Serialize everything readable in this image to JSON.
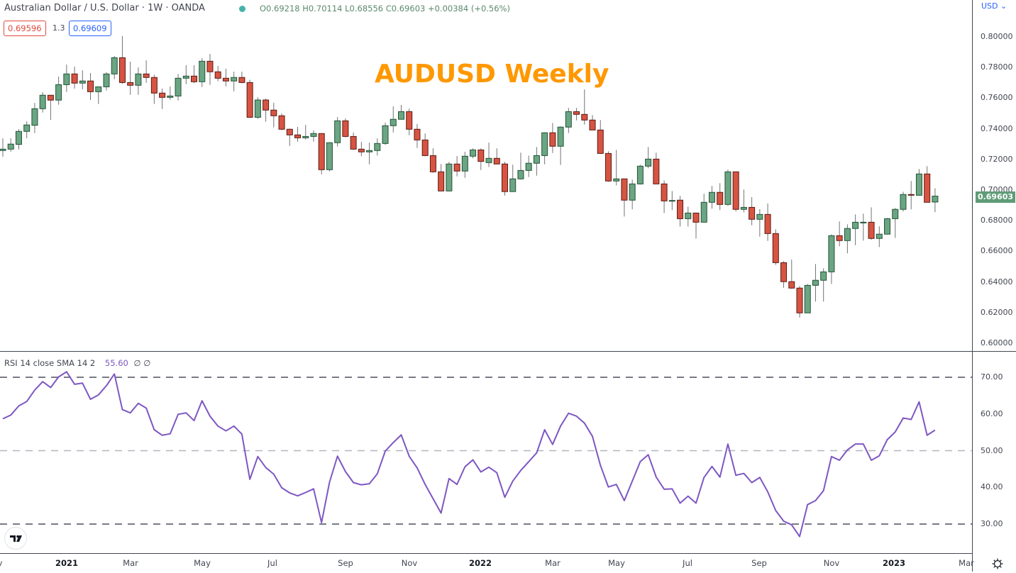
{
  "header": {
    "symbol_title": "Australian Dollar / U.S. Dollar · 1W · OANDA",
    "ohlc": "O0.69218 H0.70114 L0.68556 C0.69603 +0.00384 (+0.56%)",
    "bid": "0.69596",
    "spread": "1.3",
    "ask": "0.69609",
    "status_color": "#26a69a"
  },
  "annotation": {
    "text": "AUDUSD Weekly",
    "color": "#ff9800"
  },
  "price_axis": {
    "currency": "USD ⌄",
    "ticks": [
      "0.80000",
      "0.78000",
      "0.76000",
      "0.74000",
      "0.72000",
      "0.70000",
      "0.68000",
      "0.66000",
      "0.64000",
      "0.62000",
      "0.60000"
    ],
    "last_price": "0.69603"
  },
  "rsi_pane": {
    "legend": "RSI 14 close SMA 14 2",
    "value": "55.60",
    "extra": "∅ ∅",
    "ticks": [
      "70.00",
      "60.00",
      "50.00",
      "40.00",
      "30.00"
    ]
  },
  "time_axis": {
    "ticks": [
      {
        "label": "v",
        "year": false
      },
      {
        "label": "2021",
        "year": true
      },
      {
        "label": "Mar",
        "year": false
      },
      {
        "label": "May",
        "year": false
      },
      {
        "label": "Jul",
        "year": false
      },
      {
        "label": "Sep",
        "year": false
      },
      {
        "label": "Nov",
        "year": false
      },
      {
        "label": "2022",
        "year": true
      },
      {
        "label": "Mar",
        "year": false
      },
      {
        "label": "May",
        "year": false
      },
      {
        "label": "Jul",
        "year": false
      },
      {
        "label": "Sep",
        "year": false
      },
      {
        "label": "Nov",
        "year": false
      },
      {
        "label": "2023",
        "year": true
      },
      {
        "label": "Mar",
        "year": false
      }
    ]
  },
  "colors": {
    "up": "#6ba583",
    "up_border": "#225437",
    "down": "#d75442",
    "down_border": "#5b1a13",
    "wick": "#737375",
    "rsi": "#7e57c2"
  },
  "chart_data": [
    {
      "type": "candlestick",
      "title": "AUDUSD Weekly",
      "ylim": [
        0.6,
        0.8
      ],
      "x_tick_labels": [
        "2021",
        "Mar",
        "May",
        "Jul",
        "Sep",
        "Nov",
        "2022",
        "Mar",
        "May",
        "Jul",
        "Sep",
        "Nov",
        "2023",
        "Mar"
      ],
      "ohlc": [
        [
          0.7258,
          0.7338,
          0.7218,
          0.7267
        ],
        [
          0.7267,
          0.7338,
          0.7251,
          0.73
        ],
        [
          0.7298,
          0.7398,
          0.7265,
          0.7383
        ],
        [
          0.7383,
          0.7449,
          0.7338,
          0.7425
        ],
        [
          0.7423,
          0.7569,
          0.7372,
          0.7531
        ],
        [
          0.7531,
          0.7639,
          0.7506,
          0.7619
        ],
        [
          0.7619,
          0.7619,
          0.7458,
          0.7587
        ],
        [
          0.7587,
          0.7741,
          0.7557,
          0.7688
        ],
        [
          0.7688,
          0.7819,
          0.764,
          0.7758
        ],
        [
          0.7758,
          0.7806,
          0.7662,
          0.7698
        ],
        [
          0.7698,
          0.7782,
          0.7657,
          0.7712
        ],
        [
          0.7712,
          0.7764,
          0.7588,
          0.7642
        ],
        [
          0.7642,
          0.7674,
          0.7562,
          0.7674
        ],
        [
          0.7674,
          0.7769,
          0.765,
          0.7758
        ],
        [
          0.7758,
          0.7875,
          0.7724,
          0.7864
        ],
        [
          0.7864,
          0.8005,
          0.7693,
          0.7702
        ],
        [
          0.7702,
          0.7838,
          0.7622,
          0.7684
        ],
        [
          0.7684,
          0.7801,
          0.7622,
          0.7758
        ],
        [
          0.7758,
          0.7847,
          0.77,
          0.7735
        ],
        [
          0.7735,
          0.7753,
          0.7562,
          0.7633
        ],
        [
          0.7633,
          0.7662,
          0.7529,
          0.7605
        ],
        [
          0.7605,
          0.7676,
          0.7589,
          0.7614
        ],
        [
          0.7614,
          0.7758,
          0.7585,
          0.773
        ],
        [
          0.773,
          0.7815,
          0.7691,
          0.7744
        ],
        [
          0.7744,
          0.7815,
          0.7698,
          0.7707
        ],
        [
          0.7707,
          0.7861,
          0.7673,
          0.7841
        ],
        [
          0.7841,
          0.7889,
          0.7687,
          0.7772
        ],
        [
          0.7772,
          0.781,
          0.771,
          0.773
        ],
        [
          0.773,
          0.7792,
          0.7677,
          0.7712
        ],
        [
          0.7712,
          0.7773,
          0.7645,
          0.7735
        ],
        [
          0.7735,
          0.7773,
          0.7697,
          0.7702
        ],
        [
          0.7702,
          0.772,
          0.747,
          0.7475
        ],
        [
          0.7475,
          0.7606,
          0.7464,
          0.7588
        ],
        [
          0.7588,
          0.7597,
          0.7446,
          0.7522
        ],
        [
          0.7522,
          0.757,
          0.7409,
          0.7485
        ],
        [
          0.7485,
          0.75,
          0.739,
          0.7397
        ],
        [
          0.7397,
          0.7401,
          0.7288,
          0.736
        ],
        [
          0.736,
          0.7412,
          0.7316,
          0.7341
        ],
        [
          0.7341,
          0.7426,
          0.733,
          0.735
        ],
        [
          0.735,
          0.7389,
          0.7316,
          0.7369
        ],
        [
          0.7369,
          0.7369,
          0.7103,
          0.7133
        ],
        [
          0.7133,
          0.7313,
          0.7122,
          0.7309
        ],
        [
          0.7309,
          0.7477,
          0.7284,
          0.7452
        ],
        [
          0.7452,
          0.7468,
          0.7344,
          0.735
        ],
        [
          0.735,
          0.7375,
          0.7262,
          0.7267
        ],
        [
          0.7267,
          0.7315,
          0.7221,
          0.7249
        ],
        [
          0.7249,
          0.731,
          0.7168,
          0.7258
        ],
        [
          0.7258,
          0.7338,
          0.7225,
          0.7304
        ],
        [
          0.7304,
          0.744,
          0.7295,
          0.742
        ],
        [
          0.742,
          0.7546,
          0.7376,
          0.7462
        ],
        [
          0.7462,
          0.7556,
          0.7462,
          0.7512
        ],
        [
          0.7512,
          0.7532,
          0.7358,
          0.7397
        ],
        [
          0.7397,
          0.7431,
          0.7275,
          0.7327
        ],
        [
          0.7327,
          0.737,
          0.7221,
          0.7225
        ],
        [
          0.7225,
          0.7273,
          0.7113,
          0.7119
        ],
        [
          0.7119,
          0.717,
          0.6994,
          0.6994
        ],
        [
          0.6994,
          0.7184,
          0.6994,
          0.717
        ],
        [
          0.717,
          0.7222,
          0.7089,
          0.7124
        ],
        [
          0.7124,
          0.725,
          0.708,
          0.7221
        ],
        [
          0.7221,
          0.7272,
          0.7207,
          0.7262
        ],
        [
          0.7262,
          0.7272,
          0.7131,
          0.7187
        ],
        [
          0.7179,
          0.731,
          0.715,
          0.7207
        ],
        [
          0.7207,
          0.7272,
          0.717,
          0.717
        ],
        [
          0.717,
          0.7184,
          0.6964,
          0.699
        ],
        [
          0.699,
          0.7165,
          0.699,
          0.7073
        ],
        [
          0.7073,
          0.7244,
          0.7068,
          0.7128
        ],
        [
          0.7128,
          0.7225,
          0.7085,
          0.7175
        ],
        [
          0.7175,
          0.7281,
          0.7094,
          0.7225
        ],
        [
          0.7225,
          0.7378,
          0.7168,
          0.7374
        ],
        [
          0.7374,
          0.7438,
          0.7242,
          0.7286
        ],
        [
          0.7286,
          0.7415,
          0.7164,
          0.7411
        ],
        [
          0.7411,
          0.7536,
          0.7372,
          0.7512
        ],
        [
          0.7512,
          0.7536,
          0.7455,
          0.7494
        ],
        [
          0.7494,
          0.7657,
          0.7427,
          0.7457
        ],
        [
          0.7457,
          0.7489,
          0.7392,
          0.7392
        ],
        [
          0.7392,
          0.7457,
          0.7235,
          0.7239
        ],
        [
          0.7239,
          0.7253,
          0.7054,
          0.7059
        ],
        [
          0.7059,
          0.7262,
          0.7031,
          0.7073
        ],
        [
          0.7073,
          0.7073,
          0.6827,
          0.6934
        ],
        [
          0.6934,
          0.7068,
          0.6874,
          0.704
        ],
        [
          0.704,
          0.7165,
          0.7036,
          0.7156
        ],
        [
          0.7156,
          0.7281,
          0.7142,
          0.7202
        ],
        [
          0.7202,
          0.7244,
          0.704,
          0.704
        ],
        [
          0.704,
          0.7063,
          0.685,
          0.6929
        ],
        [
          0.6929,
          0.6994,
          0.6869,
          0.6932
        ],
        [
          0.6934,
          0.6962,
          0.6762,
          0.6813
        ],
        [
          0.6813,
          0.6892,
          0.6762,
          0.685
        ],
        [
          0.685,
          0.685,
          0.6684,
          0.679
        ],
        [
          0.679,
          0.6976,
          0.679,
          0.692
        ],
        [
          0.692,
          0.7027,
          0.6878,
          0.6985
        ],
        [
          0.6985,
          0.7045,
          0.6869,
          0.6906
        ],
        [
          0.6906,
          0.7133,
          0.6897,
          0.7119
        ],
        [
          0.7119,
          0.7119,
          0.686,
          0.6874
        ],
        [
          0.6874,
          0.7003,
          0.6855,
          0.6887
        ],
        [
          0.6887,
          0.6954,
          0.677,
          0.6809
        ],
        [
          0.6809,
          0.6875,
          0.6696,
          0.6841
        ],
        [
          0.6841,
          0.6912,
          0.6668,
          0.6716
        ],
        [
          0.6716,
          0.6744,
          0.6511,
          0.6526
        ],
        [
          0.6526,
          0.6536,
          0.6362,
          0.6402
        ],
        [
          0.6402,
          0.6546,
          0.6355,
          0.636
        ],
        [
          0.636,
          0.6374,
          0.6168,
          0.6198
        ],
        [
          0.6198,
          0.6387,
          0.6198,
          0.6378
        ],
        [
          0.6378,
          0.6517,
          0.6272,
          0.6411
        ],
        [
          0.6411,
          0.6489,
          0.6272,
          0.6466
        ],
        [
          0.6466,
          0.6711,
          0.6387,
          0.6702
        ],
        [
          0.6702,
          0.6795,
          0.6633,
          0.667
        ],
        [
          0.667,
          0.6776,
          0.6587,
          0.6749
        ],
        [
          0.6749,
          0.6841,
          0.664,
          0.679
        ],
        [
          0.6788,
          0.6846,
          0.667,
          0.679
        ],
        [
          0.679,
          0.6887,
          0.6675,
          0.6684
        ],
        [
          0.6684,
          0.6763,
          0.6628,
          0.6712
        ],
        [
          0.6712,
          0.6818,
          0.6712,
          0.6813
        ],
        [
          0.6813,
          0.6883,
          0.6688,
          0.6874
        ],
        [
          0.6874,
          0.6989,
          0.686,
          0.6971
        ],
        [
          0.6971,
          0.7059,
          0.6874,
          0.6966
        ],
        [
          0.6966,
          0.7137,
          0.6962,
          0.7105
        ],
        [
          0.7105,
          0.7156,
          0.692,
          0.692
        ],
        [
          0.69218,
          0.70114,
          0.68556,
          0.69603
        ]
      ]
    },
    {
      "type": "line",
      "title": "RSI 14 close SMA 14 2",
      "ylim": [
        23,
        76
      ],
      "levels": [
        70,
        50,
        30
      ],
      "values": [
        58.7,
        59.7,
        62.2,
        63.4,
        66.5,
        68.8,
        67.2,
        70.1,
        71.5,
        68.1,
        68.4,
        64.0,
        65.2,
        67.7,
        70.9,
        61.2,
        60.3,
        62.9,
        61.6,
        55.7,
        54.2,
        54.6,
        59.9,
        60.3,
        58.2,
        63.6,
        59.4,
        56.7,
        55.4,
        56.7,
        54.5,
        42.2,
        48.4,
        45.4,
        43.6,
        39.9,
        38.5,
        37.7,
        38.6,
        39.6,
        30.4,
        41.4,
        48.5,
        44.3,
        41.3,
        40.7,
        41.0,
        43.7,
        49.9,
        52.2,
        54.3,
        48.5,
        45.3,
        40.8,
        36.9,
        33.0,
        42.4,
        40.8,
        45.6,
        47.5,
        44.2,
        45.5,
        44.0,
        37.3,
        41.7,
        44.6,
        47.0,
        49.4,
        55.7,
        51.7,
        56.7,
        60.2,
        59.4,
        57.5,
        53.9,
        46.0,
        40.1,
        40.8,
        36.4,
        41.7,
        47.0,
        48.9,
        42.8,
        39.5,
        39.6,
        35.7,
        37.6,
        35.7,
        42.7,
        45.7,
        42.8,
        51.8,
        43.3,
        43.8,
        41.3,
        42.7,
        38.8,
        33.7,
        30.8,
        29.8,
        26.6,
        35.3,
        36.4,
        39.1,
        48.4,
        47.4,
        50.2,
        51.8,
        51.8,
        47.4,
        48.6,
        53.0,
        55.1,
        58.9,
        58.5,
        63.3,
        54.2,
        55.6
      ]
    }
  ]
}
